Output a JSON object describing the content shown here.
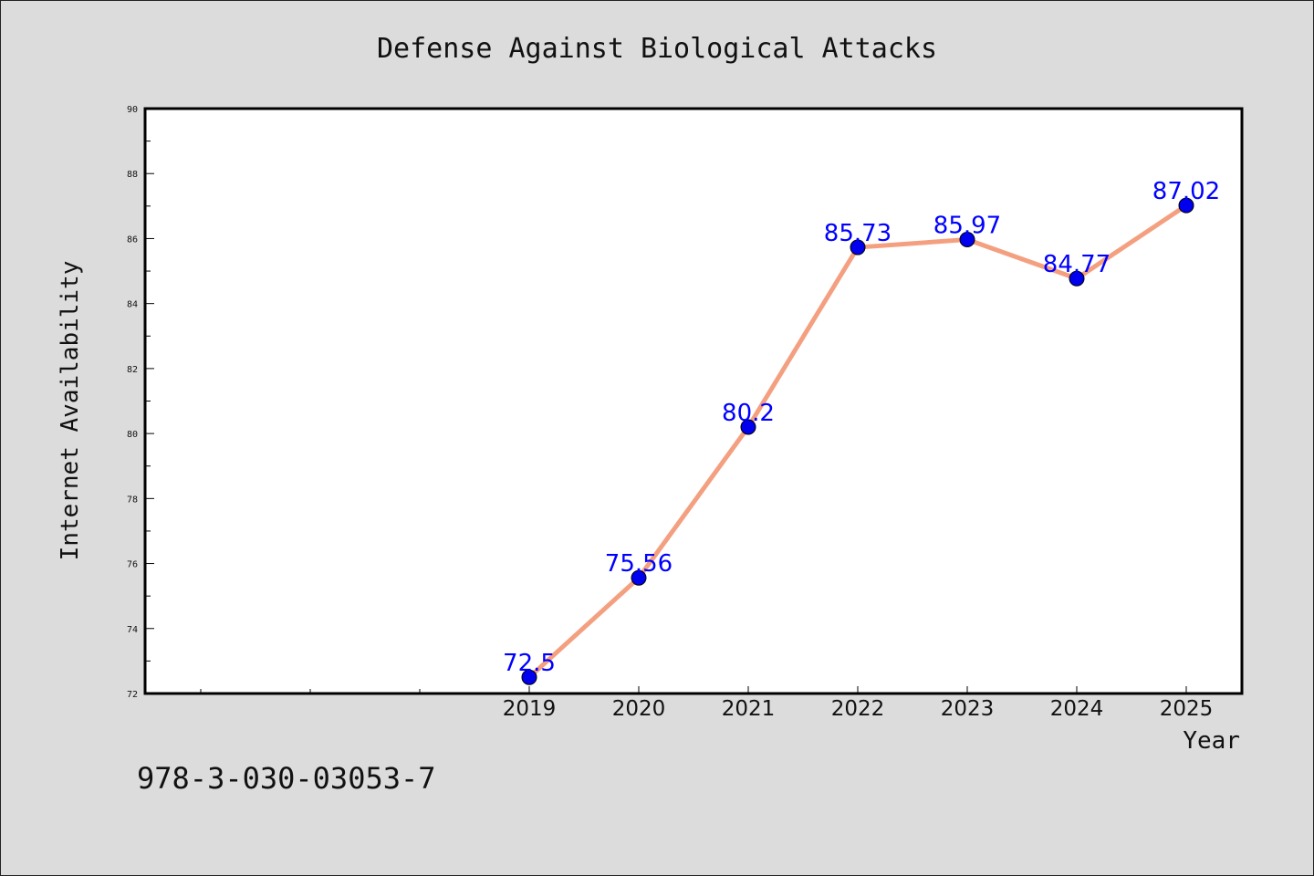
{
  "footer": {
    "code": "978-3-030-03053-7"
  },
  "colors": {
    "background": "#dcdcdc",
    "plot_background": "#ffffff",
    "line": "#f4a080",
    "marker": "#0000ee",
    "data_label": "#0000ff"
  },
  "chart_data": {
    "type": "line",
    "title": "Defense Against Biological Attacks",
    "xlabel": "Year",
    "ylabel": "Internet Availability",
    "x": [
      "2019",
      "2020",
      "2021",
      "2022",
      "2023",
      "2024",
      "2025"
    ],
    "series": [
      {
        "values": [
          72.5,
          75.56,
          80.2,
          85.73,
          85.97,
          84.77,
          87.02
        ]
      }
    ],
    "data_labels": [
      "72.5",
      "75.56",
      "80.2",
      "85.73",
      "85.97",
      "84.77",
      "87.02"
    ],
    "ylim": [
      72,
      90
    ],
    "yticks": [
      72,
      74,
      76,
      78,
      80,
      82,
      84,
      86,
      88,
      90
    ],
    "grid": false,
    "legend": "none"
  }
}
